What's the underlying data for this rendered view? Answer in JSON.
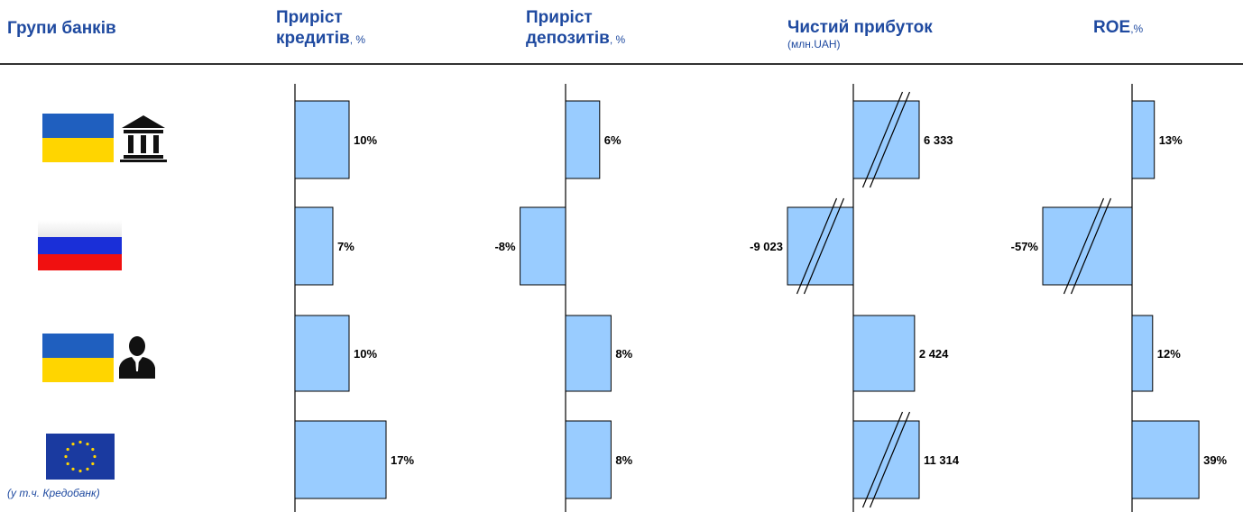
{
  "header": {
    "groups_label": "Групи банків",
    "columns": [
      {
        "title": "Приріст",
        "title2": "кредитів",
        "unit": ", %"
      },
      {
        "title": "Приріст",
        "title2": "депозитів",
        "unit": ", %"
      },
      {
        "title": "Чистий прибуток",
        "sub": "(млн.UAH)"
      },
      {
        "title": "ROE",
        "unit": ",%"
      }
    ]
  },
  "groups": [
    {
      "flag": "ukraine",
      "icon": "bank-building-icon"
    },
    {
      "flag": "russia",
      "icon": ""
    },
    {
      "flag": "ukraine",
      "icon": "person-icon"
    },
    {
      "flag": "eu",
      "icon": "",
      "note": "(у т.ч. Кредобанк)"
    }
  ],
  "colors": {
    "bar": "#99ccff",
    "header": "#1f4aa0"
  },
  "chart_data": [
    {
      "type": "bar",
      "title": "Приріст кредитів",
      "unit": "%",
      "values": [
        10,
        7,
        10,
        17
      ],
      "labels": [
        "10%",
        "7%",
        "10%",
        "17%"
      ],
      "truncated": [
        false,
        false,
        false,
        false
      ]
    },
    {
      "type": "bar",
      "title": "Приріст депозитів",
      "unit": "%",
      "values": [
        6,
        -8,
        8,
        8
      ],
      "labels": [
        "6%",
        "-8%",
        "8%",
        "8%"
      ],
      "truncated": [
        false,
        false,
        false,
        false
      ]
    },
    {
      "type": "bar",
      "title": "Чистий прибуток",
      "unit": "млн.UAH",
      "values": [
        6333,
        -9023,
        2424,
        11314
      ],
      "labels": [
        "6 333",
        "-9 023",
        "2 424",
        "11 314"
      ],
      "truncated": [
        true,
        true,
        false,
        true
      ]
    },
    {
      "type": "bar",
      "title": "ROE",
      "unit": "%",
      "values": [
        13,
        -57,
        12,
        39
      ],
      "labels": [
        "13%",
        "-57%",
        "12%",
        "39%"
      ],
      "truncated": [
        false,
        true,
        false,
        false
      ]
    }
  ]
}
